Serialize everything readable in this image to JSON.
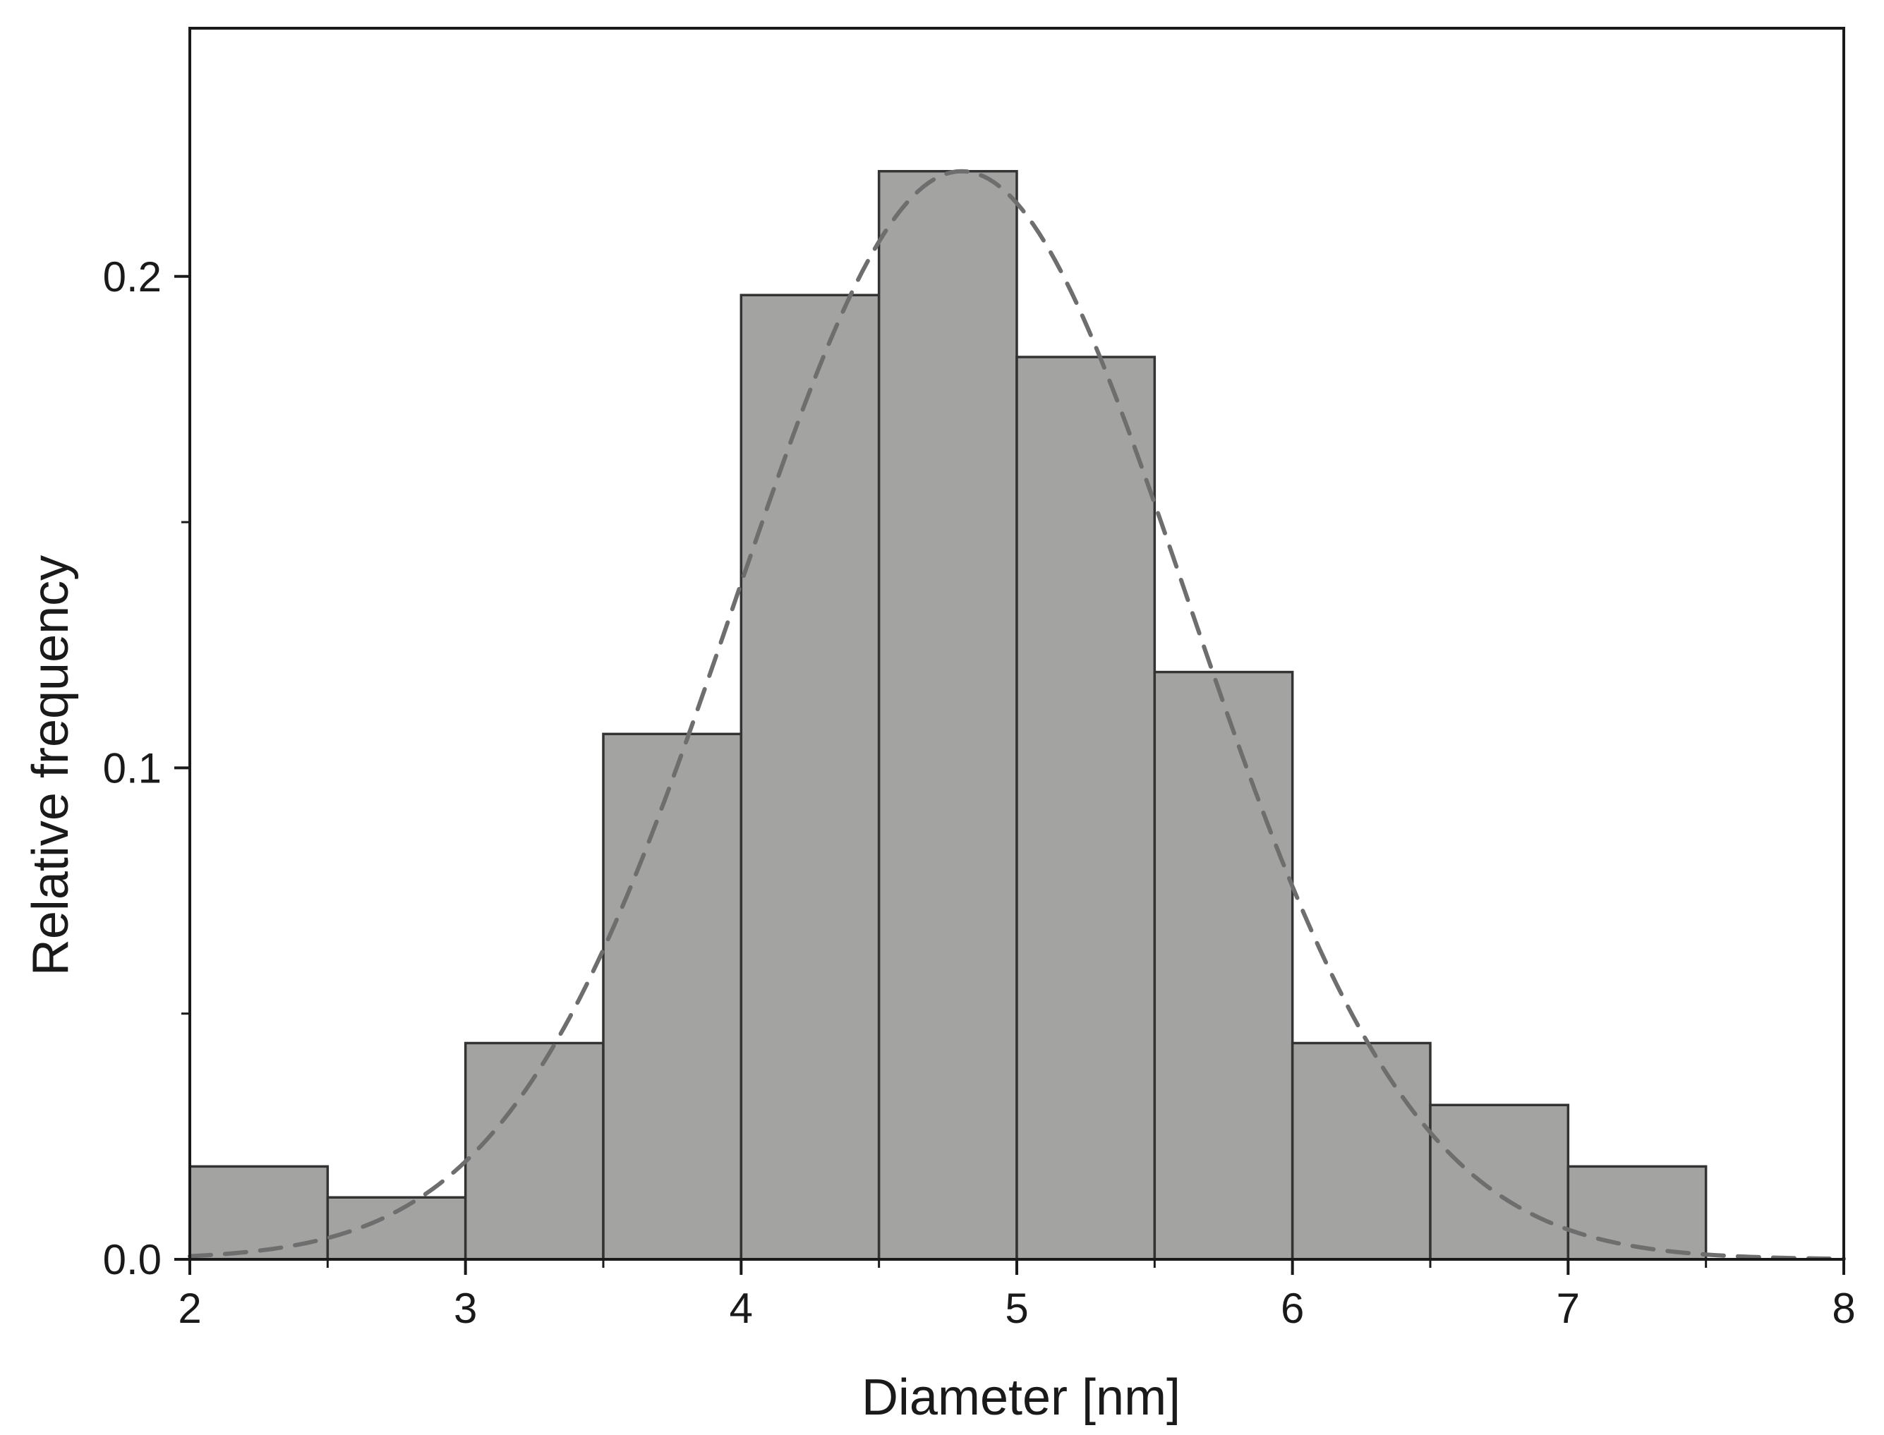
{
  "chart_data": {
    "type": "bar",
    "title": "",
    "xlabel": "Diameter [nm]",
    "ylabel": "Relative frequency",
    "xlim": [
      2,
      8
    ],
    "ylim": [
      0,
      0.2505
    ],
    "xticks": [
      "2",
      "3",
      "4",
      "5",
      "6",
      "7",
      "8"
    ],
    "yticks": [
      "0.0",
      "0.1",
      "0.2"
    ],
    "y_minor_ticks": [
      0.05,
      0.15
    ],
    "x_minor_ticks": [
      2.5,
      3.5,
      4.5,
      5.5,
      6.5,
      7.5
    ],
    "bin_edges": [
      2,
      2.5,
      3,
      3.5,
      4,
      4.5,
      5,
      5.5,
      6,
      6.5,
      7,
      7.5
    ],
    "values": [
      0.0189,
      0.0126,
      0.044,
      0.1069,
      0.1962,
      0.2214,
      0.1836,
      0.1195,
      0.044,
      0.0314,
      0.0189
    ],
    "fit": {
      "type": "gaussian",
      "style": "dashed",
      "mean": 4.8,
      "sigma": 0.82,
      "peak": 0.2214
    },
    "grid": false,
    "legend": "none",
    "colors": {
      "bar_fill": "#a3a3a1",
      "bar_edge": "#333333",
      "fit_line": "#6e6e6e",
      "axis": "#1a1a1a"
    }
  }
}
